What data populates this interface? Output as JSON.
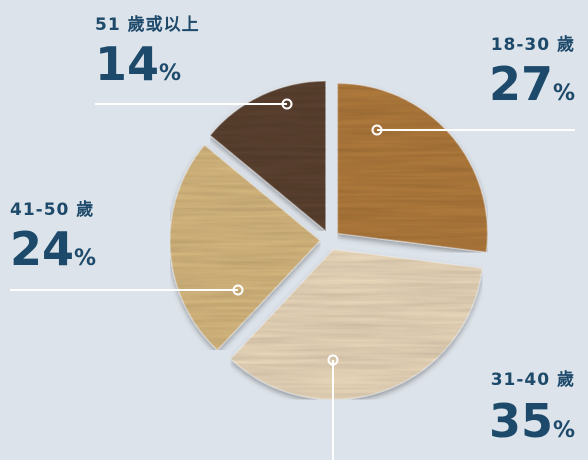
{
  "chart_data": {
    "type": "pie",
    "categories": [
      "18-30 歲",
      "31-40 歲",
      "41-50 歲",
      "51 歲或以上"
    ],
    "values": [
      27,
      35,
      24,
      14
    ],
    "value_labels": [
      "27%",
      "35%",
      "24%",
      "14%"
    ],
    "colors": [
      "#b07a3e",
      "#e8d6b9",
      "#d6b77f",
      "#5b4333"
    ]
  }
}
